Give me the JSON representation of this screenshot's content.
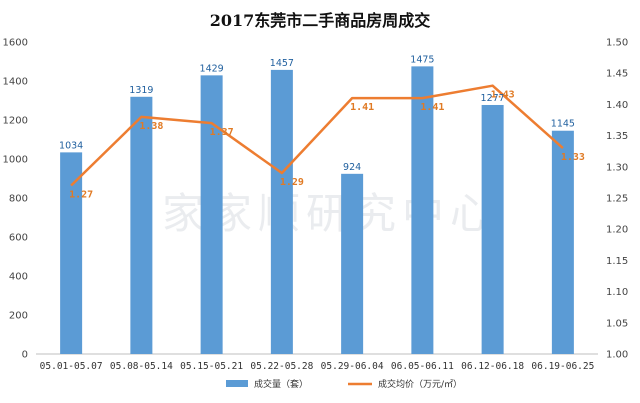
{
  "chart_data": {
    "type": "bar+line",
    "title": "2017东莞市二手商品房周成交",
    "categories": [
      "05.01-05.07",
      "05.08-05.14",
      "05.15-05.21",
      "05.22-05.28",
      "05.29-06.04",
      "06.05-06.11",
      "06.12-06.18",
      "06.19-06.25"
    ],
    "series": [
      {
        "name": "成交量（套）",
        "type": "bar",
        "axis": "left",
        "color": "#5b9bd5",
        "values": [
          1034,
          1319,
          1429,
          1457,
          924,
          1475,
          1277,
          1145
        ]
      },
      {
        "name": "成交均价（万元/㎡）",
        "type": "line",
        "axis": "right",
        "color": "#ed7d31",
        "values": [
          1.27,
          1.38,
          1.37,
          1.29,
          1.41,
          1.41,
          1.43,
          1.33
        ]
      }
    ],
    "y_left": {
      "min": 0,
      "max": 1600,
      "step": 200
    },
    "y_right": {
      "min": 1.0,
      "max": 1.5,
      "step": 0.05
    },
    "legend_position": "bottom",
    "grid": false,
    "watermark": "家家顺研究中心"
  }
}
